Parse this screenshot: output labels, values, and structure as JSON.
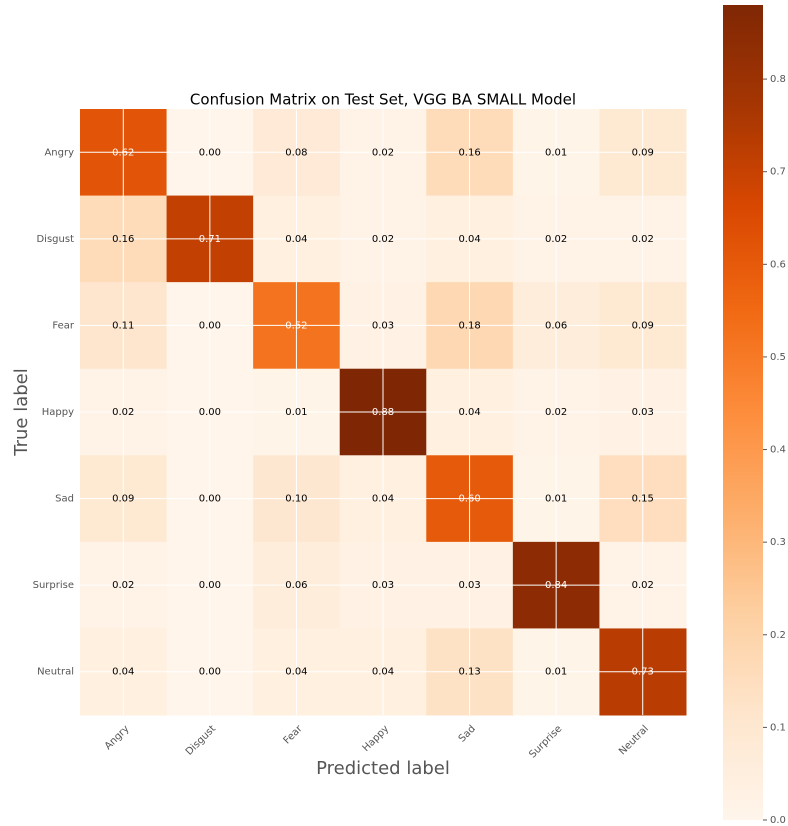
{
  "chart_data": {
    "type": "heatmap",
    "title": "Confusion Matrix on Test Set, VGG BA SMALL Model",
    "xlabel": "Predicted label",
    "ylabel": "True label",
    "categories": [
      "Angry",
      "Disgust",
      "Fear",
      "Happy",
      "Sad",
      "Surprise",
      "Neutral"
    ],
    "values": [
      [
        0.62,
        0.0,
        0.08,
        0.02,
        0.16,
        0.01,
        0.09
      ],
      [
        0.16,
        0.71,
        0.04,
        0.02,
        0.04,
        0.02,
        0.02
      ],
      [
        0.11,
        0.0,
        0.52,
        0.03,
        0.18,
        0.06,
        0.09
      ],
      [
        0.02,
        0.0,
        0.01,
        0.88,
        0.04,
        0.02,
        0.03
      ],
      [
        0.09,
        0.0,
        0.1,
        0.04,
        0.6,
        0.01,
        0.15
      ],
      [
        0.02,
        0.0,
        0.06,
        0.03,
        0.03,
        0.84,
        0.02
      ],
      [
        0.04,
        0.0,
        0.04,
        0.04,
        0.13,
        0.01,
        0.73
      ]
    ],
    "value_labels": [
      [
        "0.62",
        "0.00",
        "0.08",
        "0.02",
        "0.16",
        "0.01",
        "0.09"
      ],
      [
        "0.16",
        "0.71",
        "0.04",
        "0.02",
        "0.04",
        "0.02",
        "0.02"
      ],
      [
        "0.11",
        "0.00",
        "0.52",
        "0.03",
        "0.18",
        "0.06",
        "0.09"
      ],
      [
        "0.02",
        "0.00",
        "0.01",
        "0.88",
        "0.04",
        "0.02",
        "0.03"
      ],
      [
        "0.09",
        "0.00",
        "0.10",
        "0.04",
        "0.60",
        "0.01",
        "0.15"
      ],
      [
        "0.02",
        "0.00",
        "0.06",
        "0.03",
        "0.03",
        "0.84",
        "0.02"
      ],
      [
        "0.04",
        "0.00",
        "0.04",
        "0.04",
        "0.13",
        "0.01",
        "0.73"
      ]
    ],
    "colormap": [
      "#fff5eb",
      "#fee6ce",
      "#fdd0a2",
      "#fdae6b",
      "#fd8d3c",
      "#f16913",
      "#d94801",
      "#a63603",
      "#7f2704"
    ],
    "clim": [
      0,
      0.88
    ],
    "cticks": [
      {
        "value": 0,
        "label": "0.0"
      },
      0.1,
      0.2,
      0.3,
      0.4,
      0.5,
      0.6,
      0.7,
      0.8
    ],
    "grid": true
  }
}
